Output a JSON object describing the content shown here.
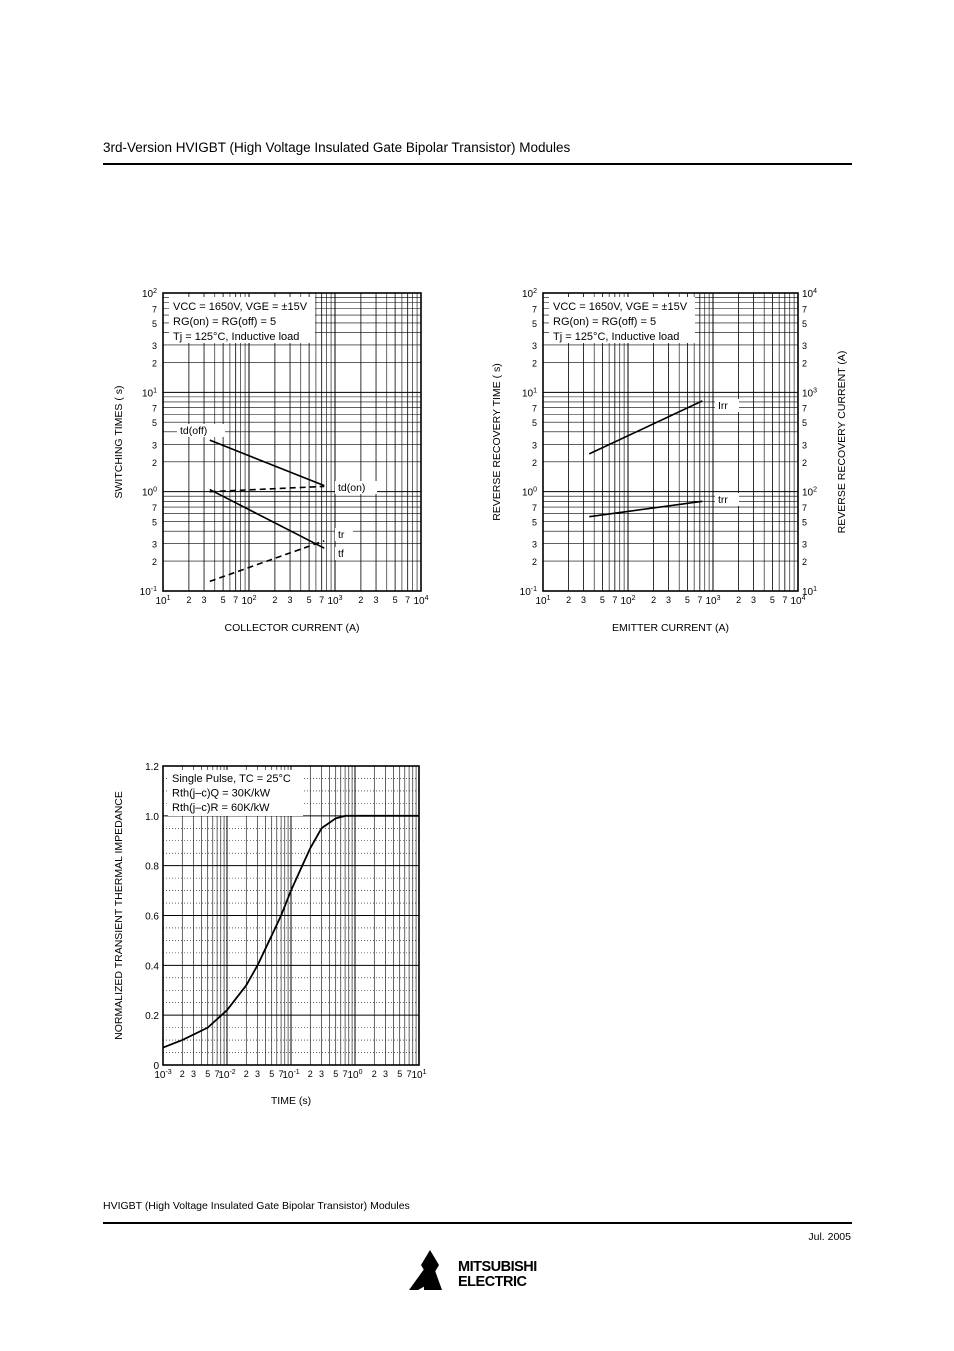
{
  "header": {
    "title": "3rd-Version HVIGBT (High Voltage Insulated Gate Bipolar Transistor) Modules"
  },
  "footer": {
    "title": "HVIGBT (High Voltage Insulated Gate Bipolar Transistor) Modules",
    "date": "Jul. 2005",
    "logo_line1": "MITSUBISHI",
    "logo_line2": "ELECTRIC"
  },
  "chart_data": [
    {
      "type": "line",
      "scale": "log-log",
      "xlabel": "COLLECTOR CURRENT (A)",
      "ylabel": "SWITCHING TIMES ( s)",
      "xlim": [
        10,
        10000
      ],
      "ylim": [
        0.1,
        100
      ],
      "x_decade_labels": [
        "10^1",
        "10^2",
        "10^3",
        "10^4"
      ],
      "y_decade_labels": [
        "10^-1",
        "10^0",
        "10^1",
        "10^2"
      ],
      "minor_tick_labels": [
        "2",
        "3",
        "5",
        "7"
      ],
      "conditions": [
        "VCC = 1650V, VGE = ±15V",
        "RG(on) = RG(off) = 5",
        "Tj = 125°C, Inductive load"
      ],
      "series": [
        {
          "name": "td(off)",
          "style": "solid",
          "x": [
            35,
            750
          ],
          "y": [
            3.3,
            1.15
          ]
        },
        {
          "name": "td(on)",
          "style": "dashed",
          "x": [
            35,
            750
          ],
          "y": [
            1.0,
            1.13
          ]
        },
        {
          "name": "tr",
          "style": "dashed",
          "x": [
            35,
            750
          ],
          "y": [
            0.125,
            0.32
          ]
        },
        {
          "name": "tf",
          "style": "solid",
          "x": [
            35,
            750
          ],
          "y": [
            1.05,
            0.27
          ]
        }
      ]
    },
    {
      "type": "line",
      "scale": "log-log",
      "xlabel": "EMITTER CURRENT (A)",
      "ylabel": "REVERSE RECOVERY TIME ( s)",
      "y2label": "REVERSE RECOVERY CURRENT (A)",
      "xlim": [
        10,
        10000
      ],
      "ylim": [
        0.1,
        100
      ],
      "y2lim": [
        10,
        10000
      ],
      "x_decade_labels": [
        "10^1",
        "10^2",
        "10^3",
        "10^4"
      ],
      "y_decade_labels": [
        "10^-1",
        "10^0",
        "10^1",
        "10^2"
      ],
      "y2_decade_labels": [
        "10^1",
        "10^2",
        "10^3",
        "10^4"
      ],
      "minor_tick_labels": [
        "2",
        "3",
        "5",
        "7"
      ],
      "conditions": [
        "VCC = 1650V, VGE = ±15V",
        "RG(on) = RG(off) = 5",
        "Tj = 125°C, Inductive load"
      ],
      "series": [
        {
          "name": "Irr",
          "axis": "right",
          "style": "solid",
          "x": [
            35,
            750
          ],
          "y": [
            240,
            820
          ]
        },
        {
          "name": "trr",
          "axis": "left",
          "style": "solid",
          "x": [
            35,
            750
          ],
          "y": [
            0.56,
            0.8
          ]
        }
      ]
    },
    {
      "type": "line",
      "scale": "log-x",
      "xlabel": "TIME (s)",
      "ylabel": "NORMALIZED TRANSIENT THERMAL IMPEDANCE",
      "xlim": [
        0.001,
        10
      ],
      "ylim": [
        0,
        1.2
      ],
      "x_decade_labels": [
        "10^-3",
        "10^-2",
        "10^-1",
        "10^0",
        "10^1"
      ],
      "y_tick_labels": [
        "0",
        "0.2",
        "0.4",
        "0.6",
        "0.8",
        "1.0",
        "1.2"
      ],
      "minor_tick_labels": [
        "2",
        "3",
        "5",
        "7"
      ],
      "conditions": [
        "Single Pulse, TC = 25°C",
        "Rth(j–c)Q = 30K/kW",
        "Rth(j–c)R = 60K/kW"
      ],
      "series": [
        {
          "name": "",
          "style": "solid",
          "x": [
            0.001,
            0.002,
            0.005,
            0.01,
            0.02,
            0.03,
            0.05,
            0.07,
            0.1,
            0.15,
            0.2,
            0.3,
            0.5,
            0.7,
            1.0,
            1.5,
            2,
            3,
            5,
            10
          ],
          "y": [
            0.07,
            0.1,
            0.15,
            0.22,
            0.32,
            0.4,
            0.52,
            0.6,
            0.7,
            0.8,
            0.87,
            0.95,
            0.99,
            1.0,
            1.0,
            1.0,
            1.0,
            1.0,
            1.0,
            1.0
          ]
        }
      ]
    }
  ]
}
